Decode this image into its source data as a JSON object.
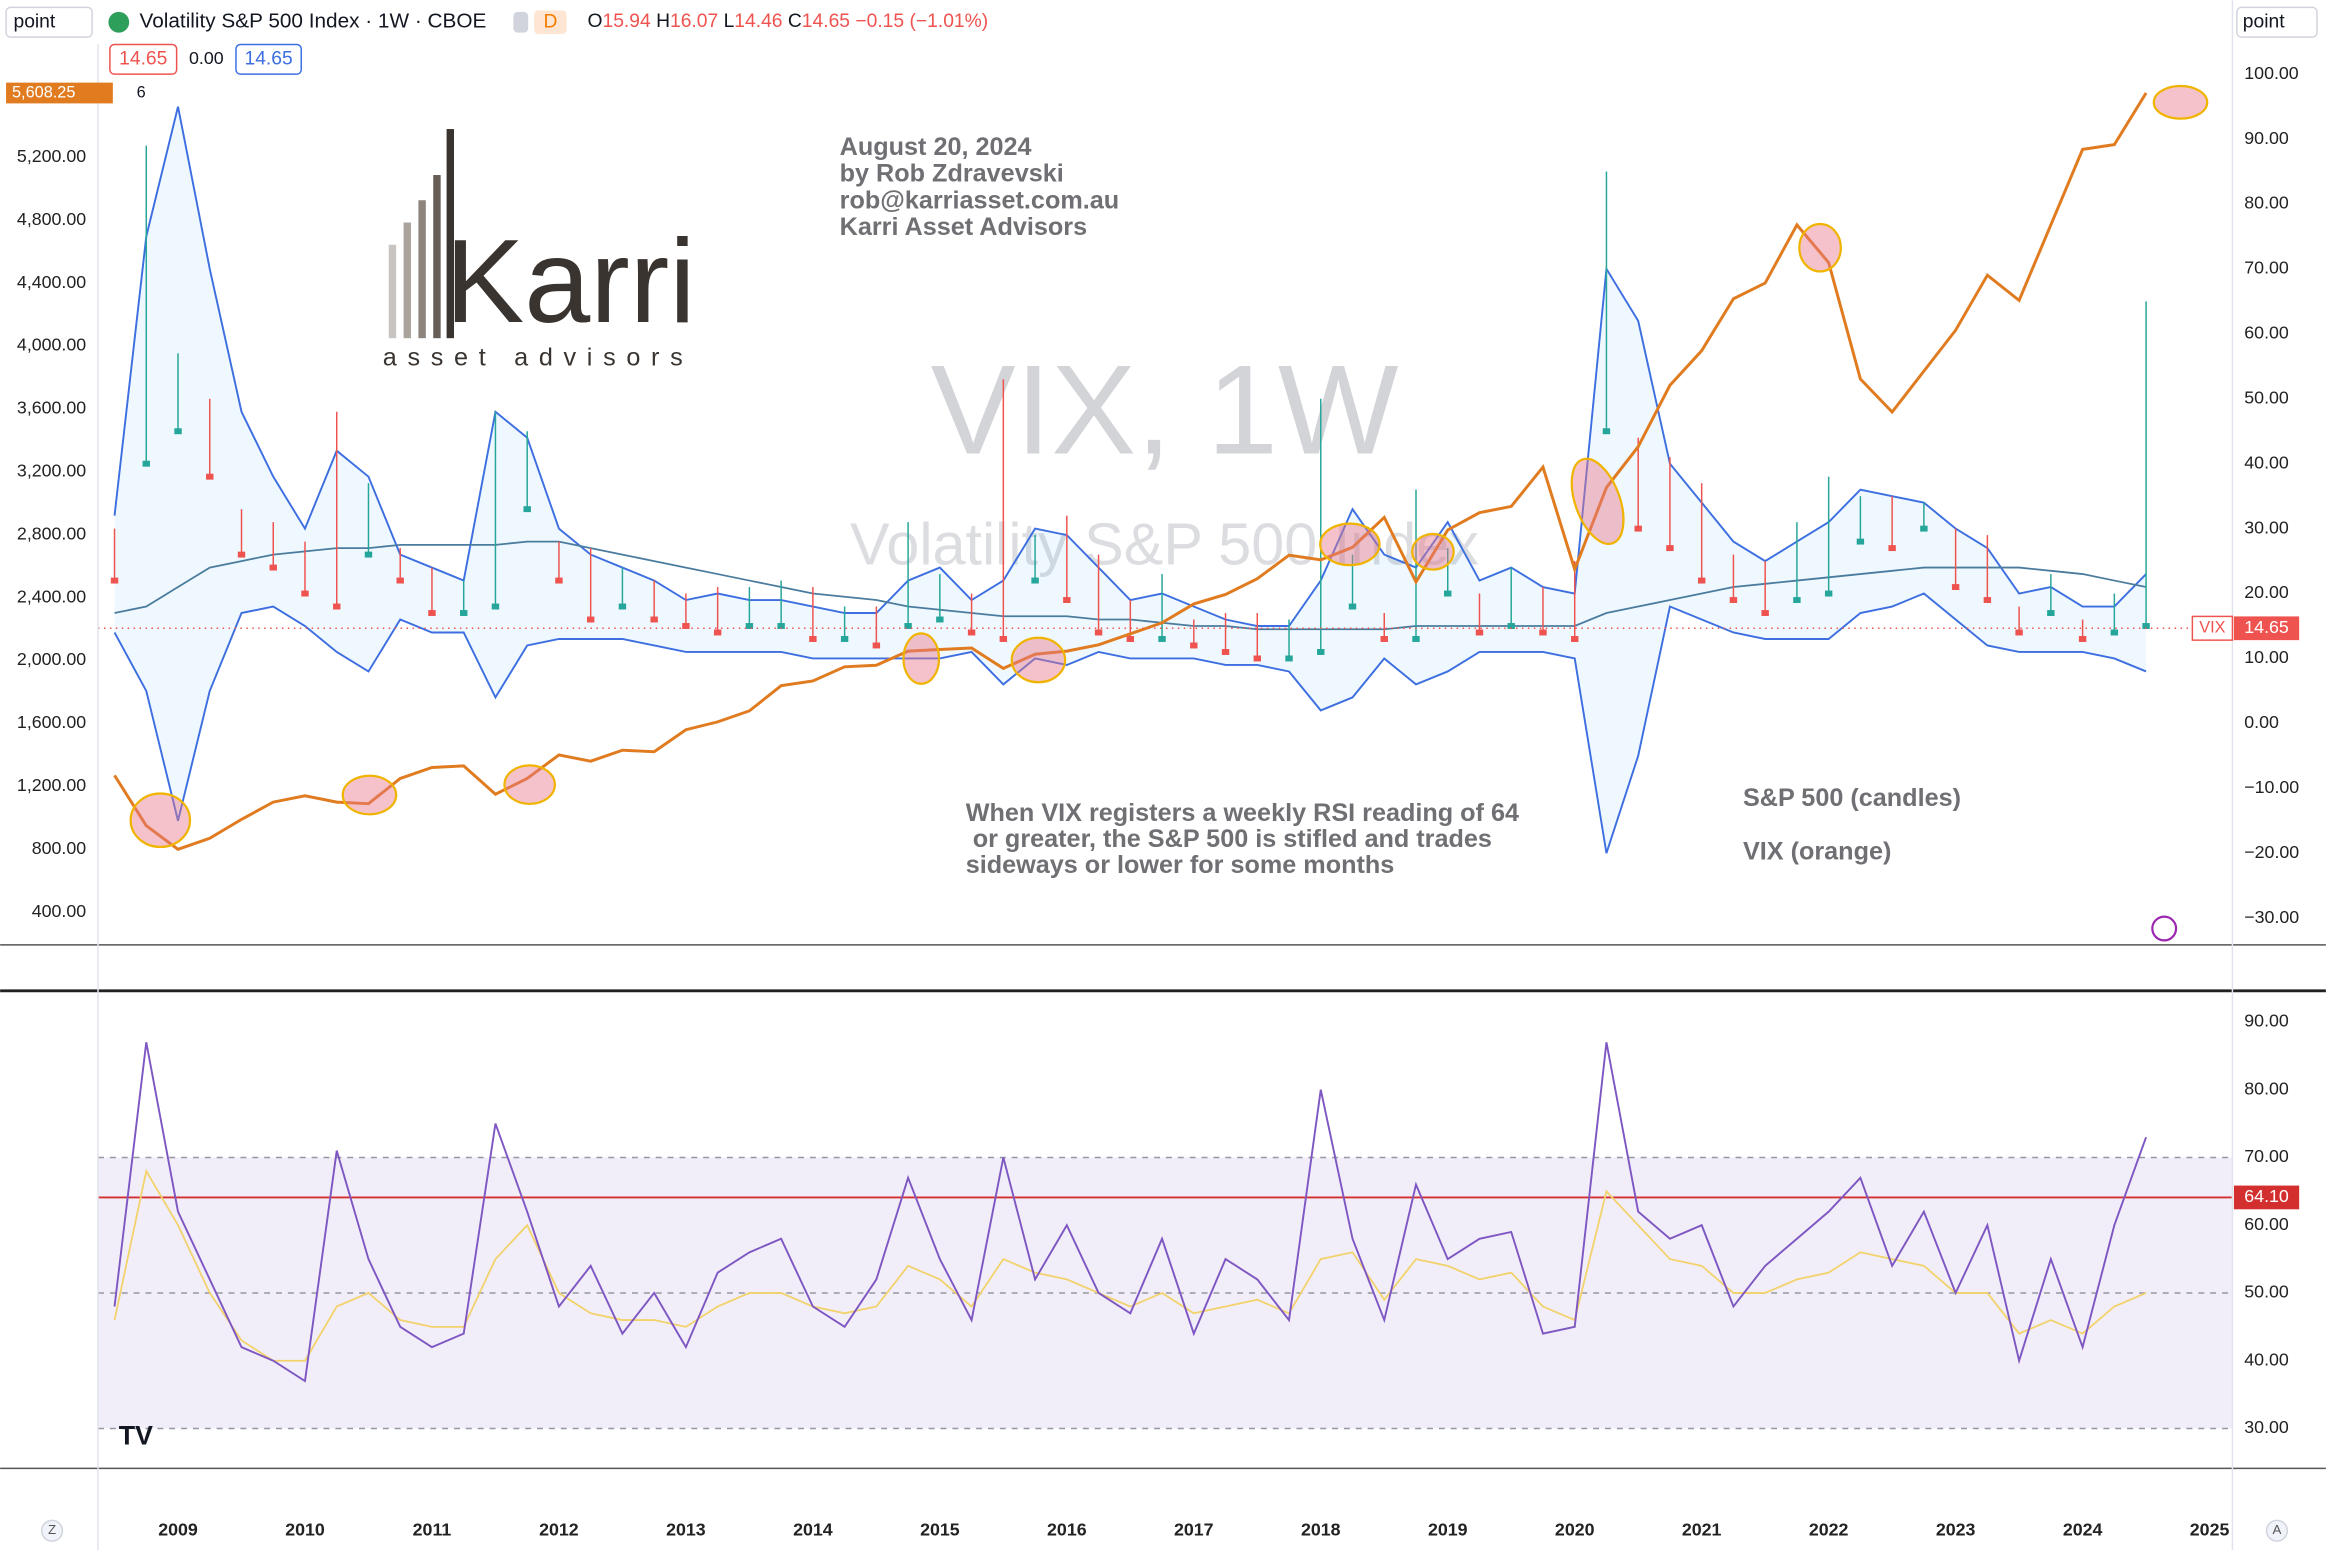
{
  "header": {
    "symbol": "Volatility S&P 500 Index · 1W · CBOE",
    "flag": "D",
    "o_label": "O",
    "open": 15.94,
    "h_label": "H",
    "high": 16.07,
    "l_label": "L",
    "low": 14.46,
    "c_label": "C",
    "close": 14.65,
    "change": "−0.15 (−1.01%)",
    "bb_lower_box": 14.65,
    "bb_mid": "0.00",
    "bb_upper_box": 14.65
  },
  "toolbar": {
    "left_scale": "point",
    "right_scale": "point",
    "zoom": "Z",
    "auto": "A"
  },
  "logo": {
    "name": "Karri",
    "tagline": "asset advisors"
  },
  "chart_data": {
    "type": "candlestick",
    "watermark": "VIX, 1W",
    "watermark_sub": "Volatility S&P 500 Index",
    "author": [
      "August 20, 2024",
      "by Rob Zdravevski",
      "rob@karriasset.com.au",
      "Karri Asset Advisors"
    ],
    "note": [
      "When VIX registers a weekly RSI reading of 64",
      " or greater, the S&P 500 is stifled and trades",
      "sideways or lower for some months"
    ],
    "legend_note": [
      "S&P 500 (candles)",
      "VIX (orange)"
    ],
    "x": [
      2008.5,
      2008.75,
      2009,
      2009.25,
      2009.5,
      2009.75,
      2010,
      2010.25,
      2010.5,
      2010.75,
      2011,
      2011.25,
      2011.5,
      2011.75,
      2012,
      2012.25,
      2012.5,
      2012.75,
      2013,
      2013.25,
      2013.5,
      2013.75,
      2014,
      2014.25,
      2014.5,
      2014.75,
      2015,
      2015.25,
      2015.5,
      2015.75,
      2016,
      2016.25,
      2016.5,
      2016.75,
      2017,
      2017.25,
      2017.5,
      2017.75,
      2018,
      2018.25,
      2018.5,
      2018.75,
      2019,
      2019.25,
      2019.5,
      2019.75,
      2020,
      2020.25,
      2020.5,
      2020.75,
      2021,
      2021.25,
      2021.5,
      2021.75,
      2022,
      2022.25,
      2022.5,
      2022.75,
      2023,
      2023.25,
      2023.5,
      2023.75,
      2024,
      2024.25,
      2024.5
    ],
    "xlim": [
      2008.37,
      2025.18
    ],
    "xticks": [
      2009,
      2010,
      2011,
      2012,
      2013,
      2014,
      2015,
      2016,
      2017,
      2018,
      2019,
      2020,
      2021,
      2022,
      2023,
      2024,
      2025
    ],
    "ylim": [
      192.5,
      5916.7
    ],
    "yticks": [
      {
        "value": 400,
        "label": "400.00"
      },
      {
        "value": 800,
        "label": "800.00"
      },
      {
        "value": 1200,
        "label": "1,200.00"
      },
      {
        "value": 1600,
        "label": "1,600.00"
      },
      {
        "value": 2000,
        "label": "2,000.00"
      },
      {
        "value": 2400,
        "label": "2,400.00"
      },
      {
        "value": 2800,
        "label": "2,800.00"
      },
      {
        "value": 3200,
        "label": "3,200.00"
      },
      {
        "value": 3600,
        "label": "3,600.00"
      },
      {
        "value": 4000,
        "label": "4,000.00"
      },
      {
        "value": 4400,
        "label": "4,400.00"
      },
      {
        "value": 4800,
        "label": "4,800.00"
      },
      {
        "value": 5200,
        "label": "5,200.00"
      }
    ],
    "y2lim": [
      -34.11,
      104.57
    ],
    "y2ticks": [
      {
        "value": 100,
        "label": "100.00"
      },
      {
        "value": 90,
        "label": "90.00"
      },
      {
        "value": 80,
        "label": "80.00"
      },
      {
        "value": 70,
        "label": "70.00"
      },
      {
        "value": 60,
        "label": "60.00"
      },
      {
        "value": 50,
        "label": "50.00"
      },
      {
        "value": 40,
        "label": "40.00"
      },
      {
        "value": 30,
        "label": "30.00"
      },
      {
        "value": 20,
        "label": "20.00"
      },
      {
        "value": 10,
        "label": "10.00"
      },
      {
        "value": 0,
        "label": "0.00"
      },
      {
        "value": -10,
        "label": "−10.00"
      },
      {
        "value": -20,
        "label": "−20.00"
      },
      {
        "value": -30,
        "label": "−30.00"
      }
    ],
    "candles": {
      "axis": "y2",
      "up_color": "#26a69a",
      "down_color": "#ef5350",
      "high": [
        30,
        89,
        57,
        50,
        33,
        31,
        28,
        48,
        37,
        27,
        24,
        22,
        48,
        45,
        28,
        27,
        24,
        22,
        20,
        21,
        21,
        22,
        21,
        18,
        18,
        31,
        23,
        20,
        53,
        29,
        32,
        26,
        19,
        23,
        16,
        17,
        17,
        16,
        50,
        26,
        17,
        36,
        27,
        20,
        24,
        21,
        25,
        85,
        44,
        41,
        37,
        26,
        25,
        31,
        38,
        35,
        35,
        34,
        30,
        29,
        18,
        23,
        16,
        20,
        65
      ],
      "close": [
        22,
        40,
        45,
        38,
        26,
        24,
        20,
        18,
        26,
        22,
        17,
        17,
        18,
        33,
        22,
        16,
        18,
        16,
        15,
        14,
        15,
        15,
        13,
        13,
        12,
        15,
        16,
        14,
        13,
        22,
        19,
        14,
        13,
        13,
        12,
        11,
        10,
        10,
        11,
        18,
        13,
        13,
        20,
        14,
        15,
        14,
        13,
        45,
        30,
        27,
        22,
        19,
        17,
        19,
        20,
        28,
        27,
        30,
        21,
        19,
        14,
        17,
        13,
        14,
        15
      ]
    },
    "spx": {
      "color": "#e07b20",
      "values": [
        1270,
        950,
        800,
        870,
        990,
        1100,
        1140,
        1100,
        1090,
        1250,
        1320,
        1330,
        1150,
        1250,
        1400,
        1360,
        1430,
        1420,
        1560,
        1610,
        1680,
        1840,
        1870,
        1960,
        1970,
        2060,
        2070,
        2080,
        1950,
        2040,
        2060,
        2100,
        2170,
        2240,
        2360,
        2420,
        2520,
        2670,
        2640,
        2720,
        2910,
        2500,
        2830,
        2940,
        2980,
        3230,
        2580,
        3100,
        3360,
        3750,
        3970,
        4300,
        4400,
        4770,
        4530,
        3790,
        3580,
        3840,
        4100,
        4450,
        4290,
        4770,
        5250,
        5280,
        5608.25
      ]
    },
    "spx_last": {
      "value": 5608.25,
      "label": "5,608.25"
    },
    "spx_last_suffix": "6",
    "bands": {
      "axis": "y2",
      "color": "#3d6fe0",
      "basis_color": "#4b7c9e",
      "upper": [
        32,
        75,
        95,
        70,
        48,
        38,
        30,
        42,
        38,
        26,
        24,
        22,
        48,
        44,
        30,
        26,
        24,
        22,
        19,
        20,
        19,
        19,
        18,
        17,
        17,
        22,
        24,
        19,
        22,
        30,
        29,
        24,
        19,
        20,
        18,
        16,
        15,
        15,
        22,
        33,
        26,
        24,
        31,
        22,
        24,
        21,
        20,
        70,
        62,
        40,
        34,
        28,
        25,
        28,
        31,
        36,
        35,
        34,
        30,
        27,
        20,
        21,
        18,
        18,
        23
      ],
      "lower": [
        14,
        5,
        -15,
        5,
        17,
        18,
        15,
        11,
        8,
        16,
        14,
        14,
        4,
        12,
        13,
        13,
        13,
        12,
        11,
        11,
        11,
        11,
        10,
        10,
        10,
        10,
        10,
        11,
        6,
        10,
        9,
        11,
        10,
        10,
        10,
        9,
        9,
        8,
        2,
        4,
        10,
        6,
        8,
        11,
        11,
        11,
        10,
        -20,
        -5,
        18,
        16,
        14,
        13,
        13,
        13,
        17,
        18,
        20,
        16,
        12,
        11,
        11,
        11,
        10,
        8
      ],
      "basis": [
        17,
        18,
        21,
        24,
        25,
        26,
        26.5,
        27,
        27,
        27.5,
        27.5,
        27.5,
        27.5,
        28,
        28,
        27,
        26,
        25,
        24,
        23,
        22,
        21,
        20,
        19.5,
        19,
        18,
        17.5,
        17,
        16.5,
        16.5,
        16.5,
        16,
        16,
        15.5,
        15,
        15,
        14.5,
        14.5,
        14.5,
        14.5,
        14.5,
        15,
        15,
        15,
        15,
        15,
        15,
        17,
        18,
        19,
        20,
        21,
        21.5,
        22,
        22.5,
        23,
        23.5,
        24,
        24,
        24,
        24,
        23.5,
        23,
        22,
        21
      ]
    },
    "vix_last": {
      "name": "VIX",
      "value": 14.65,
      "color": "#ef5350"
    },
    "rsi": {
      "ylim": [
        24.1,
        94.6
      ],
      "color": "#7e57c2",
      "ma_color": "#f2d26b",
      "band_color": "#7e57c2",
      "yticks": [
        {
          "value": 90,
          "label": "90.00"
        },
        {
          "value": 80,
          "label": "80.00"
        },
        {
          "value": 70,
          "label": "70.00"
        },
        {
          "value": 60,
          "label": "60.00"
        },
        {
          "value": 50,
          "label": "50.00"
        },
        {
          "value": 40,
          "label": "40.00"
        },
        {
          "value": 30,
          "label": "30.00"
        }
      ],
      "levels": [
        70,
        50,
        30
      ],
      "signal": {
        "value": 64.1,
        "label": "64.10",
        "color": "#d32f2f"
      },
      "values": [
        48,
        87,
        62,
        52,
        42,
        40,
        37,
        71,
        55,
        45,
        42,
        44,
        75,
        62,
        48,
        54,
        44,
        50,
        42,
        53,
        56,
        58,
        48,
        45,
        52,
        67,
        55,
        46,
        70,
        52,
        60,
        50,
        47,
        58,
        44,
        55,
        52,
        46,
        80,
        58,
        46,
        66,
        55,
        58,
        59,
        44,
        45,
        87,
        62,
        58,
        60,
        48,
        54,
        58,
        62,
        67,
        54,
        62,
        50,
        60,
        40,
        55,
        42,
        60,
        73
      ],
      "ma": [
        46,
        68,
        60,
        50,
        43,
        40,
        40,
        48,
        50,
        46,
        45,
        45,
        55,
        60,
        50,
        47,
        46,
        46,
        45,
        48,
        50,
        50,
        48,
        47,
        48,
        54,
        52,
        48,
        55,
        53,
        52,
        50,
        48,
        50,
        47,
        48,
        49,
        47,
        55,
        56,
        49,
        55,
        54,
        52,
        53,
        48,
        46,
        65,
        60,
        55,
        54,
        50,
        50,
        52,
        53,
        56,
        55,
        54,
        50,
        50,
        44,
        46,
        44,
        48,
        50
      ]
    }
  }
}
